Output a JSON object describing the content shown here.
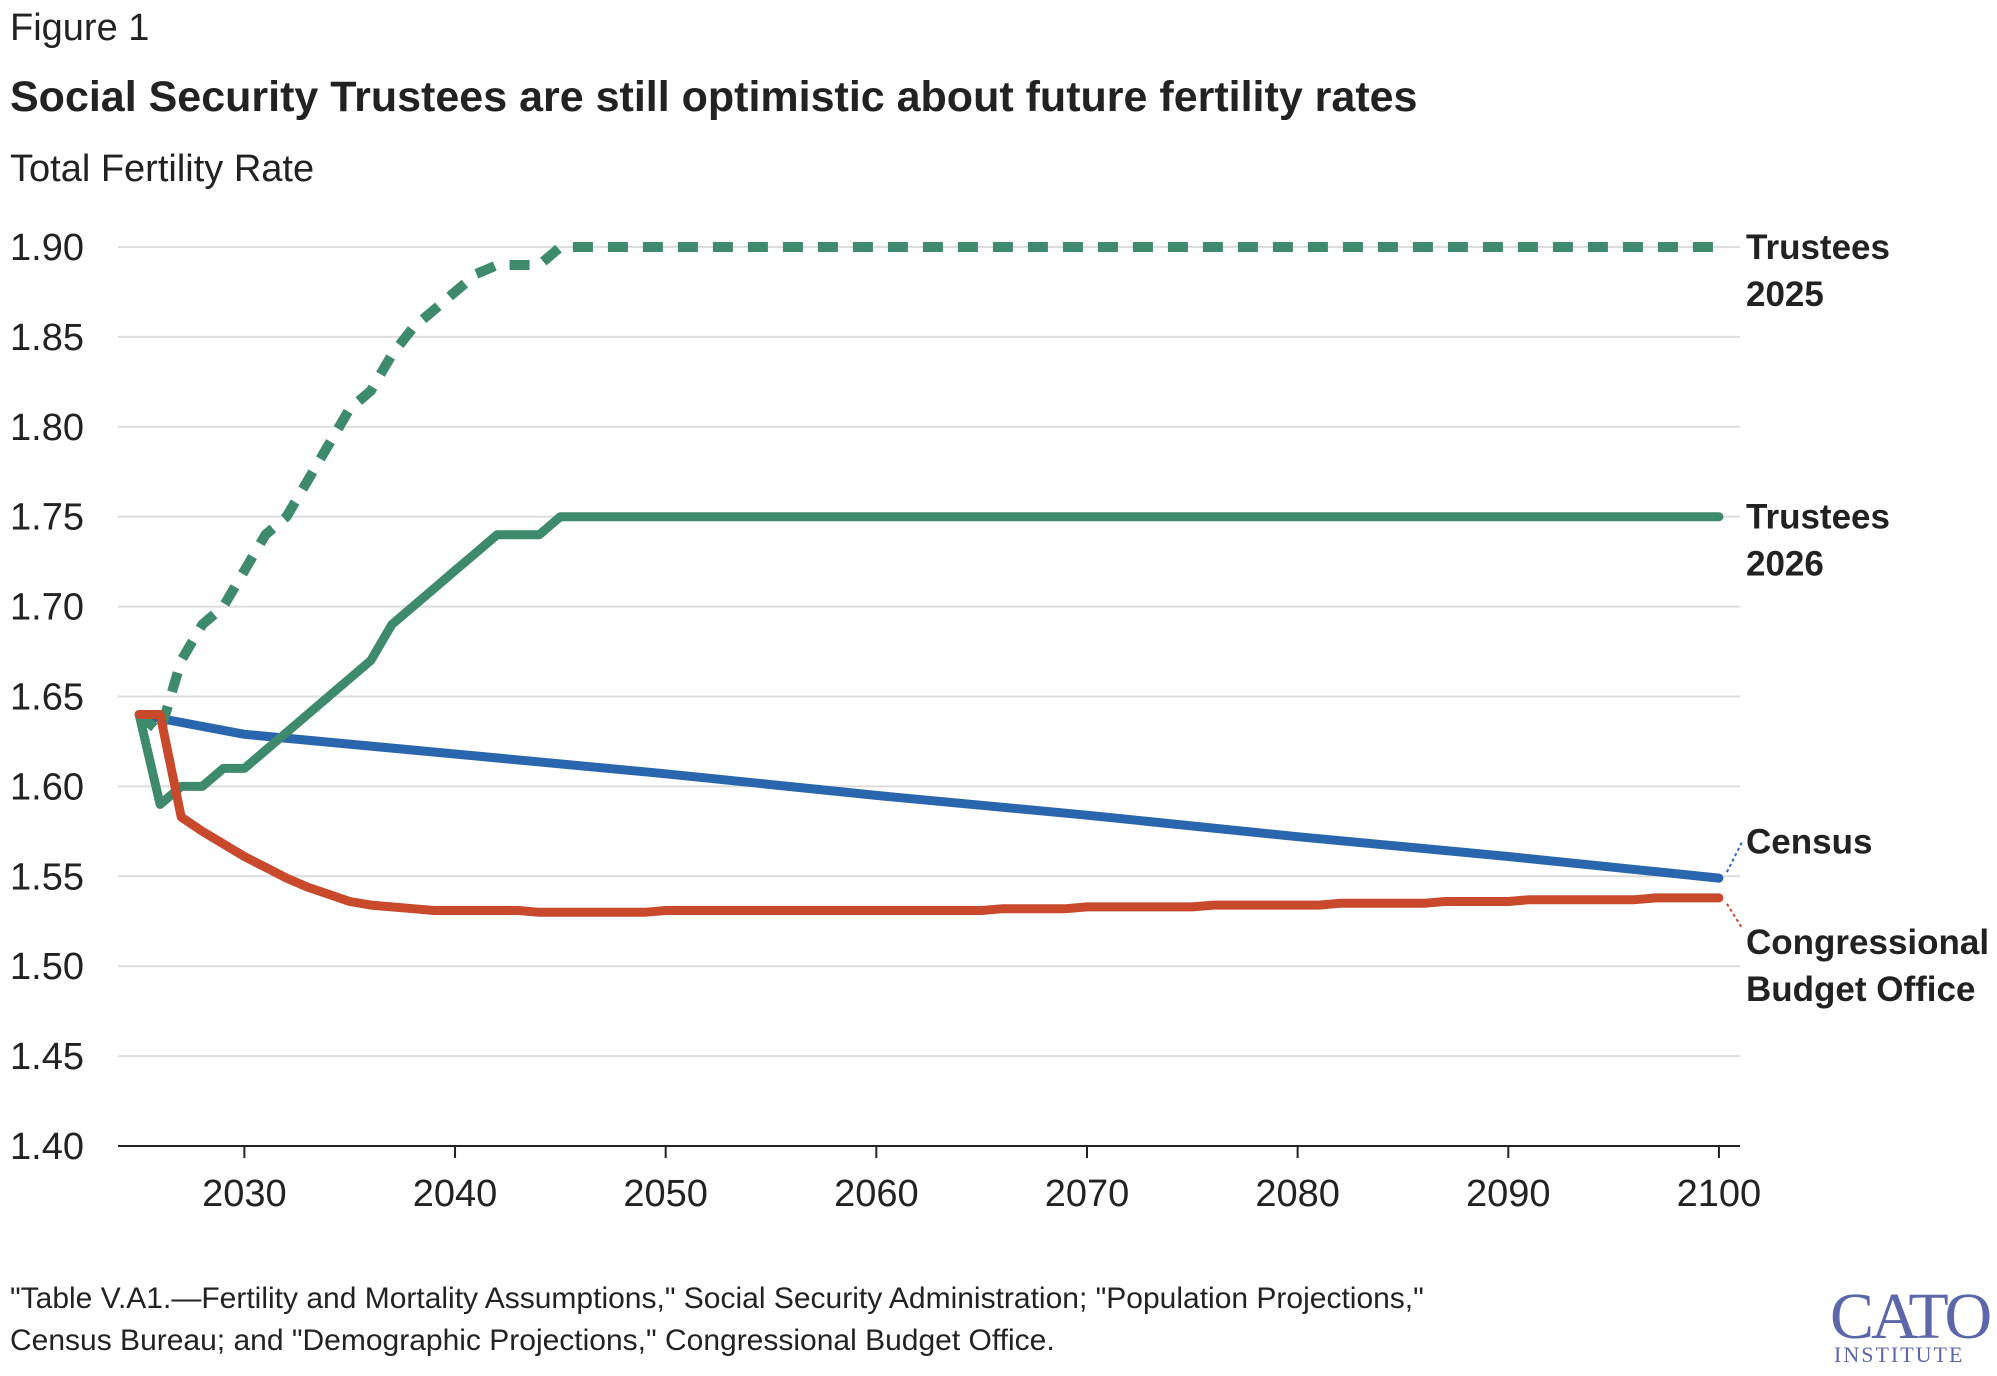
{
  "figure_label": "Figure 1",
  "source_lines": [
    "\"Table V.A1.—Fertility and Mortality Assumptions,\" Social Security Administration; \"Population Projections,\"",
    "Census Bureau; and \"Demographic Projections,\" Congressional Budget Office."
  ],
  "logo": {
    "name": "CATO",
    "sub": "INSTITUTE"
  },
  "colors": {
    "trustees": "#3e8a6c",
    "census": "#2a66ad",
    "cbo": "#c8492c",
    "text": "#222222",
    "grid": "#dddddd"
  },
  "chart_data": {
    "type": "line",
    "title": "Social Security Trustees are still optimistic about future fertility rates",
    "ylabel": "Total Fertility Rate",
    "xlabel": "",
    "xlim": [
      2024,
      2101
    ],
    "ylim": [
      1.4,
      1.9
    ],
    "x_ticks": [
      "2030",
      "2040",
      "2050",
      "2060",
      "2070",
      "2080",
      "2090",
      "2100"
    ],
    "y_ticks": [
      "1.40",
      "1.45",
      "1.50",
      "1.55",
      "1.60",
      "1.65",
      "1.70",
      "1.75",
      "1.80",
      "1.85",
      "1.90"
    ],
    "grid": "horizontal",
    "legend": "direct labels at line ends (right)",
    "series": [
      {
        "name": "Trustees 2025",
        "label_lines": [
          "Trustees",
          "2025"
        ],
        "style": "dashed",
        "color": "#3e8a6c",
        "x": [
          2025,
          2026,
          2027,
          2028,
          2029,
          2030,
          2031,
          2032,
          2033,
          2034,
          2035,
          2036,
          2037,
          2038,
          2039,
          2040,
          2041,
          2042,
          2043,
          2044,
          2045,
          2050,
          2060,
          2070,
          2080,
          2090,
          2100
        ],
        "y": [
          1.64,
          1.63,
          1.67,
          1.69,
          1.7,
          1.72,
          1.74,
          1.75,
          1.77,
          1.79,
          1.81,
          1.82,
          1.84,
          1.855,
          1.865,
          1.875,
          1.885,
          1.89,
          1.89,
          1.89,
          1.9,
          1.9,
          1.9,
          1.9,
          1.9,
          1.9,
          1.9
        ]
      },
      {
        "name": "Trustees 2026",
        "label_lines": [
          "Trustees",
          "2026"
        ],
        "style": "solid",
        "color": "#3e8a6c",
        "x": [
          2025,
          2026,
          2027,
          2028,
          2029,
          2030,
          2031,
          2032,
          2033,
          2034,
          2035,
          2036,
          2037,
          2038,
          2039,
          2040,
          2041,
          2042,
          2043,
          2044,
          2045,
          2050,
          2060,
          2070,
          2080,
          2090,
          2100
        ],
        "y": [
          1.64,
          1.59,
          1.6,
          1.6,
          1.61,
          1.61,
          1.62,
          1.63,
          1.64,
          1.65,
          1.66,
          1.67,
          1.69,
          1.7,
          1.71,
          1.72,
          1.73,
          1.74,
          1.74,
          1.74,
          1.75,
          1.75,
          1.75,
          1.75,
          1.75,
          1.75,
          1.75
        ]
      },
      {
        "name": "Census",
        "label_lines": [
          "Census"
        ],
        "style": "solid",
        "color": "#2a66ad",
        "x": [
          2025,
          2030,
          2040,
          2050,
          2060,
          2070,
          2080,
          2090,
          2100
        ],
        "y": [
          1.64,
          1.629,
          1.618,
          1.607,
          1.595,
          1.584,
          1.572,
          1.561,
          1.549
        ]
      },
      {
        "name": "Congressional Budget Office",
        "label_lines": [
          "Congressional",
          "Budget Office"
        ],
        "style": "solid",
        "color": "#c8492c",
        "x": [
          2025,
          2026,
          2027,
          2028,
          2029,
          2030,
          2031,
          2032,
          2033,
          2034,
          2035,
          2036,
          2037,
          2038,
          2039,
          2040,
          2043,
          2044,
          2049,
          2050,
          2055,
          2060,
          2065,
          2066,
          2069,
          2070,
          2075,
          2076,
          2081,
          2082,
          2086,
          2087,
          2090,
          2091,
          2096,
          2097,
          2100
        ],
        "y": [
          1.64,
          1.64,
          1.583,
          1.575,
          1.568,
          1.561,
          1.555,
          1.549,
          1.544,
          1.54,
          1.536,
          1.534,
          1.533,
          1.532,
          1.531,
          1.531,
          1.531,
          1.53,
          1.53,
          1.531,
          1.531,
          1.531,
          1.531,
          1.532,
          1.532,
          1.533,
          1.533,
          1.534,
          1.534,
          1.535,
          1.535,
          1.536,
          1.536,
          1.537,
          1.537,
          1.538,
          1.538
        ]
      }
    ]
  }
}
